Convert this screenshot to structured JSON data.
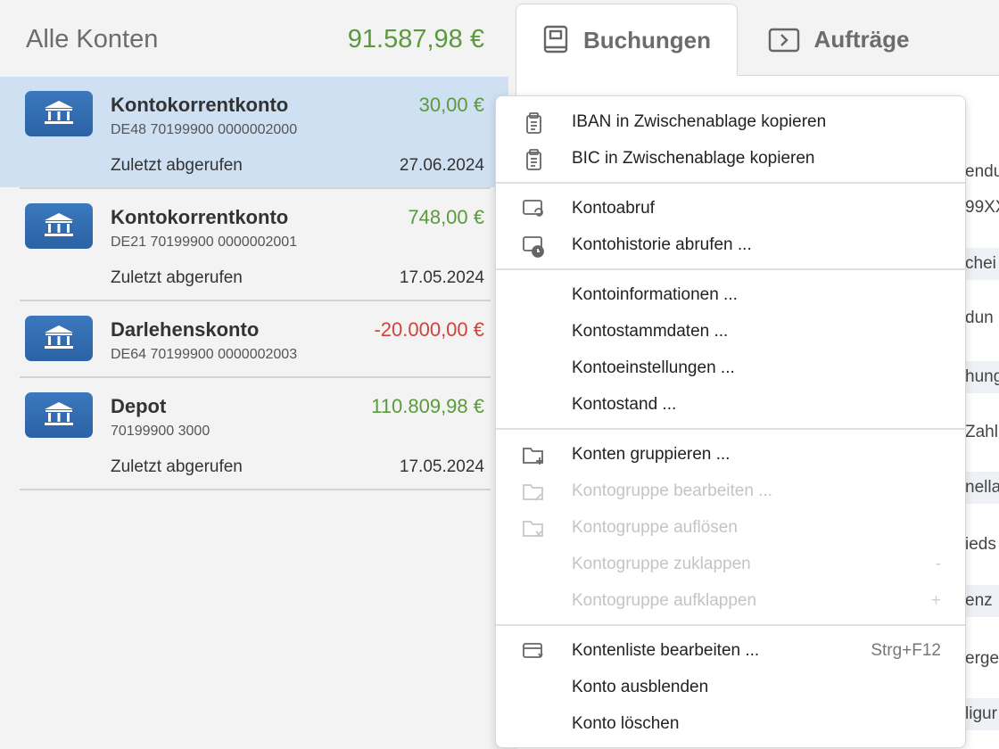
{
  "header": {
    "title": "Alle Konten",
    "total": "91.587,98 €"
  },
  "tabs": [
    {
      "label": "Buchungen",
      "selected": true
    },
    {
      "label": "Aufträge",
      "selected": false
    }
  ],
  "accounts": [
    {
      "name": "Kontokorrentkonto",
      "iban": "DE48 70199900 0000002000",
      "amount": "30,00 €",
      "last_label": "Zuletzt abgerufen",
      "last_date": "27.06.2024",
      "selected": true
    },
    {
      "name": "Kontokorrentkonto",
      "iban": "DE21 70199900 0000002001",
      "amount": "748,00 €",
      "last_label": "Zuletzt abgerufen",
      "last_date": "17.05.2024",
      "selected": false
    },
    {
      "name": "Darlehenskonto",
      "iban": "DE64 70199900 0000002003",
      "amount": "-20.000,00 €",
      "selected": false
    },
    {
      "name": "Depot",
      "iban": "70199900 3000",
      "amount": "110.809,98 €",
      "last_label": "Zuletzt abgerufen",
      "last_date": "17.05.2024",
      "selected": false
    }
  ],
  "background_fragments": [
    "endu",
    "99XX",
    "chei",
    "dun",
    "hung",
    "Zahl",
    "nella",
    "ieds",
    "enz",
    "erge",
    "ligur"
  ],
  "menu": {
    "groups": [
      {
        "items": [
          {
            "label": "IBAN in Zwischenablage kopieren",
            "disabled": false
          },
          {
            "label": "BIC in Zwischenablage kopieren",
            "disabled": false
          }
        ]
      },
      {
        "items": [
          {
            "label": "Kontoabruf",
            "disabled": false
          },
          {
            "label": "Kontohistorie abrufen ...",
            "disabled": false
          }
        ]
      },
      {
        "items": [
          {
            "label": "Kontoinformationen ...",
            "disabled": false
          },
          {
            "label": "Kontostammdaten ...",
            "disabled": false
          },
          {
            "label": "Kontoeinstellungen ...",
            "disabled": false
          },
          {
            "label": "Kontostand ...",
            "disabled": false
          }
        ]
      },
      {
        "items": [
          {
            "label": "Konten gruppieren ...",
            "disabled": false
          },
          {
            "label": "Kontogruppe bearbeiten ...",
            "disabled": true
          },
          {
            "label": "Kontogruppe auflösen",
            "disabled": true
          },
          {
            "label": "Kontogruppe zuklappen",
            "shortcut": "-",
            "disabled": true
          },
          {
            "label": "Kontogruppe aufklappen",
            "shortcut": "+",
            "disabled": true
          }
        ]
      },
      {
        "items": [
          {
            "label": "Kontenliste bearbeiten ...",
            "shortcut": "Strg+F12",
            "disabled": false
          },
          {
            "label": "Konto ausblenden",
            "disabled": false
          },
          {
            "label": "Konto löschen",
            "disabled": false
          }
        ]
      }
    ]
  }
}
